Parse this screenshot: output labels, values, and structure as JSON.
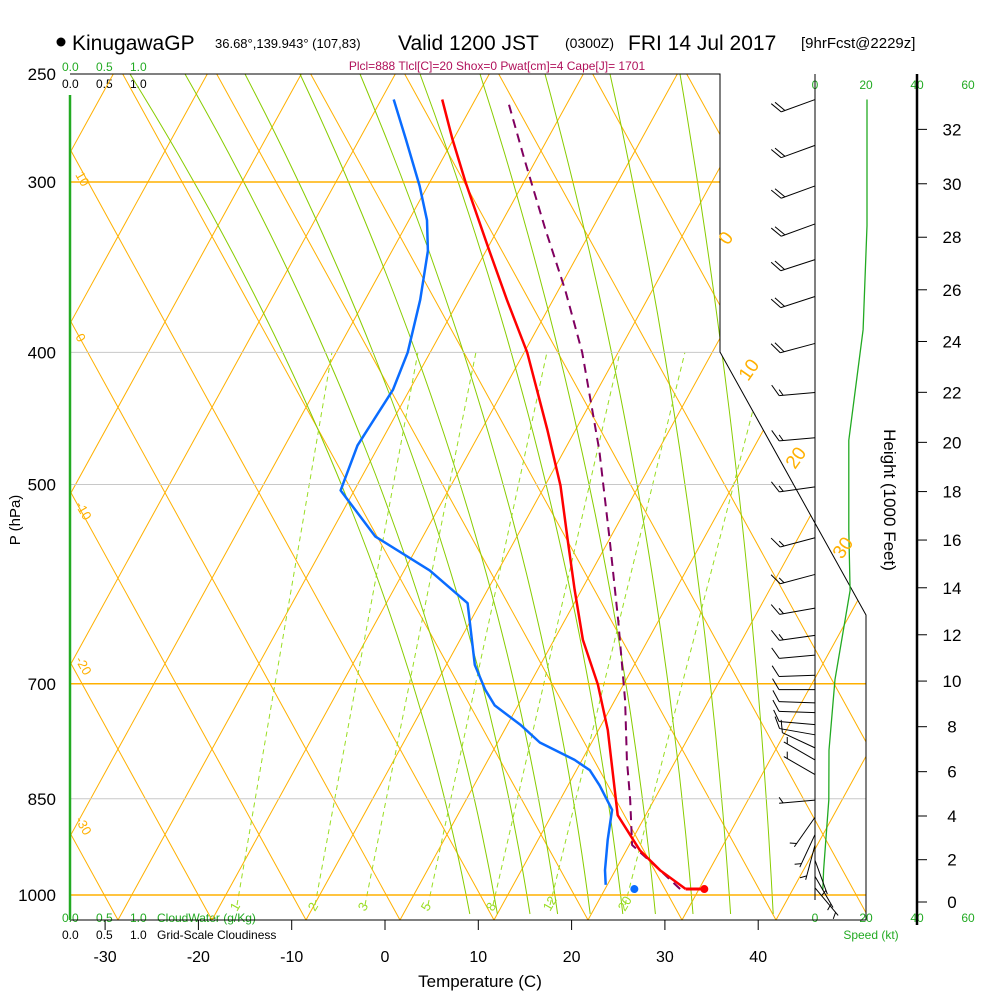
{
  "header": {
    "station": "KinugawaGP",
    "coords": "36.68°,139.943° (107,83)",
    "valid": "Valid 1200 JST",
    "utc": "(0300Z)",
    "date": "FRI 14 Jul 2017",
    "forecast": "[9hrFcst@2229z]",
    "indices": "Plcl=888 Tlcl[C]=20 Shox=0 Pwat[cm]=4 Cape[J]= 1701"
  },
  "scales": {
    "cloudwater_ticks_top": [
      "0.0",
      "0.5",
      "1.0"
    ],
    "cloudiness_ticks_top": [
      "0.0",
      "0.5",
      "1.0"
    ],
    "cloudwater_ticks_bottom": [
      "0.0",
      "0.5",
      "1.0"
    ],
    "cloudwater_label": "CloudWater (g/Kg)",
    "cloudiness_ticks_bottom": [
      "0.0",
      "0.5",
      "1.0"
    ],
    "cloudiness_label": "Grid-Scale Cloudiness",
    "speed_ticks": [
      "0",
      "20",
      "40",
      "60"
    ],
    "speed_label": "Speed (kt)"
  },
  "colors": {
    "temperature": "#ff0000",
    "dewpoint": "#0a6cff",
    "parcel": "#800060",
    "isotherm": "#ffb000",
    "moist_adiabat": "#88cc00",
    "mixing_ratio": "#99dd22",
    "speed": "#22aa22",
    "indices": "#b0105a"
  },
  "chart_data": {
    "type": "line",
    "title": "KinugawaGP Valid 1200 JST (0300Z) FRI 14 Jul 2017",
    "xlabel": "Temperature (C)",
    "ylabel": "P (hPa)",
    "y2label": "Height (1000 Feet)",
    "xlim": [
      -33,
      47
    ],
    "ylim": [
      1000,
      250
    ],
    "x_ticks": [
      "-30",
      "-20",
      "-10",
      "0",
      "10",
      "20",
      "30",
      "40"
    ],
    "pressure_ticks": [
      "250",
      "300",
      "400",
      "500",
      "700",
      "850",
      "1000"
    ],
    "height_ticks": [
      "0",
      "2",
      "4",
      "6",
      "8",
      "10",
      "12",
      "14",
      "16",
      "18",
      "20",
      "22",
      "24",
      "26",
      "28",
      "30",
      "32"
    ],
    "isotherm_labels_left": [
      "10",
      "0",
      "-10",
      "-20",
      "-30"
    ],
    "adiabat_labels_right": [
      "0",
      "10",
      "20",
      "30"
    ],
    "mixing_ratio_labels": [
      "1",
      "2",
      "3",
      "5",
      "8",
      "12",
      "20"
    ],
    "series": [
      {
        "name": "Temperature",
        "points": [
          [
            990,
            30.5
          ],
          [
            959,
            26.7
          ],
          [
            927,
            23.4
          ],
          [
            874,
            19.1
          ],
          [
            838,
            17.4
          ],
          [
            757,
            13.3
          ],
          [
            701,
            9.7
          ],
          [
            650,
            5.6
          ],
          [
            597,
            1.9
          ],
          [
            549,
            -1.6
          ],
          [
            501,
            -5.4
          ],
          [
            456,
            -9.9
          ],
          [
            400,
            -16.4
          ],
          [
            366,
            -21.5
          ],
          [
            337,
            -26.1
          ],
          [
            300,
            -32.5
          ],
          [
            279,
            -36.3
          ],
          [
            261,
            -39.6
          ]
        ]
      },
      {
        "name": "Dewpoint",
        "points": [
          [
            983,
            21.7
          ],
          [
            959,
            20.8
          ],
          [
            911,
            19.4
          ],
          [
            866,
            18.2
          ],
          [
            831,
            15.5
          ],
          [
            810,
            13.6
          ],
          [
            796,
            11.4
          ],
          [
            773,
            6.7
          ],
          [
            750,
            3.6
          ],
          [
            726,
            -0.2
          ],
          [
            707,
            -2.1
          ],
          [
            678,
            -4.6
          ],
          [
            650,
            -6.3
          ],
          [
            611,
            -8.8
          ],
          [
            578,
            -14.7
          ],
          [
            546,
            -22.4
          ],
          [
            505,
            -28.7
          ],
          [
            468,
            -29.4
          ],
          [
            426,
            -28.7
          ],
          [
            400,
            -29.2
          ],
          [
            366,
            -30.8
          ],
          [
            337,
            -32.7
          ],
          [
            320,
            -34.5
          ],
          [
            302,
            -37.2
          ],
          [
            279,
            -41.3
          ],
          [
            261,
            -44.8
          ]
        ]
      },
      {
        "name": "Parcel",
        "points": [
          [
            990,
            29.9
          ],
          [
            959,
            26.7
          ],
          [
            919,
            22.3
          ],
          [
            852,
            19.6
          ],
          [
            796,
            17.0
          ],
          [
            720,
            13.5
          ],
          [
            629,
            8.3
          ],
          [
            549,
            2.9
          ],
          [
            472,
            -3.2
          ],
          [
            433,
            -7.0
          ],
          [
            400,
            -10.5
          ],
          [
            360,
            -15.8
          ],
          [
            325,
            -21.3
          ],
          [
            289,
            -27.4
          ],
          [
            261,
            -32.6
          ]
        ]
      }
    ],
    "surface": {
      "pressure": 990,
      "temperature": 32.5,
      "dewpoint": 25.0
    },
    "wind_speed": [
      [
        992,
        3
      ],
      [
        959,
        3.3
      ],
      [
        852,
        5.3
      ],
      [
        783,
        5.4
      ],
      [
        695,
        7.7
      ],
      [
        598,
        13.5
      ],
      [
        540,
        13
      ],
      [
        464,
        13
      ],
      [
        385,
        18.5
      ],
      [
        323,
        20
      ],
      [
        261,
        20
      ]
    ],
    "wind_barbs": [
      {
        "p": 261,
        "dir": 250,
        "kt": 20
      },
      {
        "p": 282,
        "dir": 250,
        "kt": 20
      },
      {
        "p": 302,
        "dir": 250,
        "kt": 20
      },
      {
        "p": 322,
        "dir": 250,
        "kt": 20
      },
      {
        "p": 342,
        "dir": 252,
        "kt": 20
      },
      {
        "p": 364,
        "dir": 252,
        "kt": 20
      },
      {
        "p": 394,
        "dir": 255,
        "kt": 20
      },
      {
        "p": 428,
        "dir": 265,
        "kt": 15
      },
      {
        "p": 462,
        "dir": 265,
        "kt": 15
      },
      {
        "p": 502,
        "dir": 262,
        "kt": 15
      },
      {
        "p": 547,
        "dir": 255,
        "kt": 15
      },
      {
        "p": 582,
        "dir": 255,
        "kt": 15
      },
      {
        "p": 616,
        "dir": 260,
        "kt": 15
      },
      {
        "p": 645,
        "dir": 262,
        "kt": 15
      },
      {
        "p": 667,
        "dir": 265,
        "kt": 12
      },
      {
        "p": 690,
        "dir": 268,
        "kt": 12
      },
      {
        "p": 707,
        "dir": 270,
        "kt": 10
      },
      {
        "p": 723,
        "dir": 272,
        "kt": 10
      },
      {
        "p": 735,
        "dir": 272,
        "kt": 10
      },
      {
        "p": 750,
        "dir": 275,
        "kt": 10
      },
      {
        "p": 763,
        "dir": 280,
        "kt": 10
      },
      {
        "p": 780,
        "dir": 295,
        "kt": 8
      },
      {
        "p": 796,
        "dir": 300,
        "kt": 7
      },
      {
        "p": 816,
        "dir": 300,
        "kt": 5
      },
      {
        "p": 852,
        "dir": 265,
        "kt": 5
      },
      {
        "p": 877,
        "dir": 215,
        "kt": 5
      },
      {
        "p": 903,
        "dir": 205,
        "kt": 5
      },
      {
        "p": 919,
        "dir": 195,
        "kt": 4
      },
      {
        "p": 943,
        "dir": 160,
        "kt": 3
      },
      {
        "p": 969,
        "dir": 150,
        "kt": 4
      },
      {
        "p": 988,
        "dir": 140,
        "kt": 5
      }
    ]
  }
}
